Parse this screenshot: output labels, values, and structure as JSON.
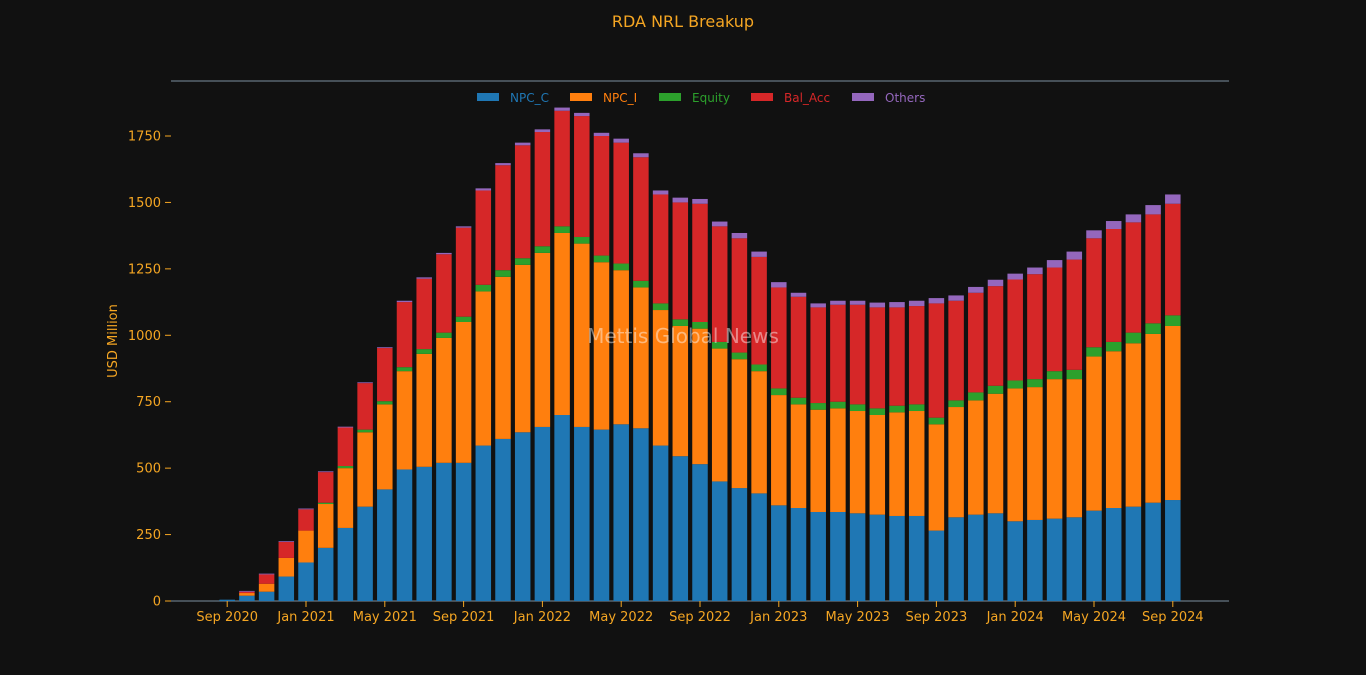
{
  "chart_data": {
    "type": "bar",
    "stacked": true,
    "title": "RDA NRL Breakup",
    "ylabel": "USD Million",
    "xlabel": "",
    "watermark": "Mettis Global News",
    "ylim": [
      0,
      1950
    ],
    "yticks": [
      0,
      250,
      500,
      750,
      1000,
      1250,
      1500,
      1750
    ],
    "grid": false,
    "legend_position": "top",
    "x_start": "Aug 2020",
    "x_tick_labels": [
      {
        "label": "Sep 2020",
        "index": 1
      },
      {
        "label": "Jan 2021",
        "index": 5
      },
      {
        "label": "May 2021",
        "index": 9
      },
      {
        "label": "Sep 2021",
        "index": 13
      },
      {
        "label": "Jan 2022",
        "index": 17
      },
      {
        "label": "May 2022",
        "index": 21
      },
      {
        "label": "Sep 2022",
        "index": 25
      },
      {
        "label": "Jan 2023",
        "index": 29
      },
      {
        "label": "May 2023",
        "index": 33
      },
      {
        "label": "Sep 2023",
        "index": 37
      },
      {
        "label": "Jan 2024",
        "index": 41
      },
      {
        "label": "May 2024",
        "index": 45
      },
      {
        "label": "Sep 2024",
        "index": 49
      }
    ],
    "series": [
      {
        "name": "NPC_C",
        "color": "#1f77b4",
        "values": [
          0,
          5,
          20,
          35,
          92,
          145,
          200,
          275,
          355,
          420,
          495,
          505,
          520,
          520,
          585,
          610,
          635,
          655,
          700,
          655,
          645,
          665,
          650,
          585,
          545,
          515,
          450,
          425,
          405,
          360,
          350,
          335,
          335,
          330,
          325,
          320,
          320,
          265,
          315,
          325,
          330,
          300,
          305,
          310,
          315,
          340,
          350,
          355,
          370,
          380
        ]
      },
      {
        "name": "NPC_I",
        "color": "#ff7f0e",
        "values": [
          0,
          0,
          10,
          30,
          70,
          120,
          165,
          225,
          280,
          320,
          370,
          425,
          470,
          530,
          580,
          610,
          630,
          655,
          685,
          690,
          630,
          580,
          530,
          510,
          490,
          510,
          500,
          485,
          460,
          415,
          390,
          385,
          390,
          385,
          375,
          390,
          395,
          400,
          415,
          430,
          450,
          500,
          500,
          525,
          520,
          580,
          590,
          615,
          635,
          655
        ]
      },
      {
        "name": "Equity",
        "color": "#2ca02c",
        "values": [
          0,
          0,
          0,
          0,
          0,
          0,
          5,
          8,
          10,
          12,
          15,
          18,
          20,
          20,
          25,
          25,
          25,
          25,
          25,
          25,
          25,
          25,
          25,
          25,
          25,
          25,
          25,
          25,
          25,
          25,
          25,
          25,
          25,
          25,
          25,
          25,
          25,
          25,
          25,
          30,
          30,
          30,
          30,
          30,
          35,
          35,
          35,
          40,
          40,
          40
        ]
      },
      {
        "name": "Bal_Acc",
        "color": "#d62728",
        "values": [
          0,
          0,
          5,
          35,
          60,
          80,
          115,
          145,
          175,
          200,
          245,
          265,
          295,
          335,
          355,
          395,
          425,
          430,
          435,
          455,
          450,
          455,
          465,
          410,
          440,
          445,
          435,
          430,
          405,
          380,
          380,
          360,
          365,
          375,
          380,
          370,
          370,
          430,
          375,
          375,
          375,
          380,
          395,
          390,
          415,
          410,
          425,
          415,
          410,
          420
        ]
      },
      {
        "name": "Others",
        "color": "#9467bd",
        "values": [
          0,
          0,
          3,
          3,
          3,
          3,
          3,
          3,
          3,
          3,
          5,
          5,
          5,
          5,
          8,
          8,
          10,
          10,
          12,
          12,
          12,
          15,
          15,
          15,
          18,
          18,
          18,
          20,
          20,
          20,
          15,
          15,
          15,
          15,
          18,
          20,
          20,
          20,
          20,
          22,
          24,
          22,
          25,
          28,
          30,
          30,
          30,
          30,
          35,
          35
        ]
      }
    ]
  }
}
